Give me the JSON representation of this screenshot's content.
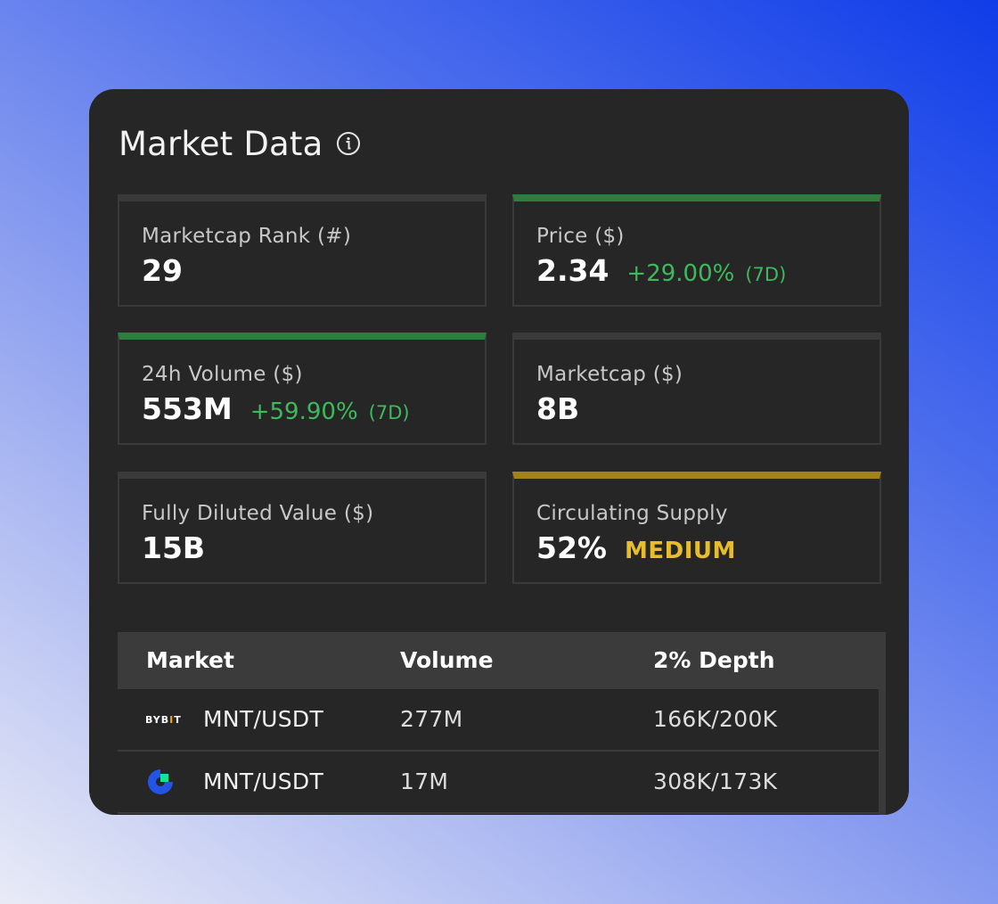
{
  "header": {
    "title": "Market Data",
    "info_icon": "info-icon"
  },
  "tiles": [
    {
      "label": "Marketcap Rank (#)",
      "value": "29"
    },
    {
      "label": "Price ($)",
      "value": "2.34",
      "change": "+29.00%",
      "period": "(7D)",
      "accent": "#2e7d3e"
    },
    {
      "label": "24h Volume ($)",
      "value": "553M",
      "change": "+59.90%",
      "period": "(7D)",
      "accent": "#2e7d3e"
    },
    {
      "label": "Marketcap ($)",
      "value": "8B"
    },
    {
      "label": "Fully Diluted Value ($)",
      "value": "15B"
    },
    {
      "label": "Circulating Supply",
      "value": "52%",
      "level": "MEDIUM",
      "accent": "#a1821c"
    }
  ],
  "table": {
    "columns": [
      "Market",
      "Volume",
      "2% Depth"
    ],
    "rows": [
      {
        "exchange_icon": "bybit-logo-icon",
        "exchange_logo_text": "BYBIT",
        "pair": "MNT/USDT",
        "volume": "277M",
        "depth": "166K/200K"
      },
      {
        "exchange_icon": "gate-logo-icon",
        "pair": "MNT/USDT",
        "volume": "17M",
        "depth": "308K/173K"
      }
    ]
  },
  "colors": {
    "positive": "#3dbb5c",
    "medium": "#e7bd2b",
    "card_bg": "#262626"
  }
}
